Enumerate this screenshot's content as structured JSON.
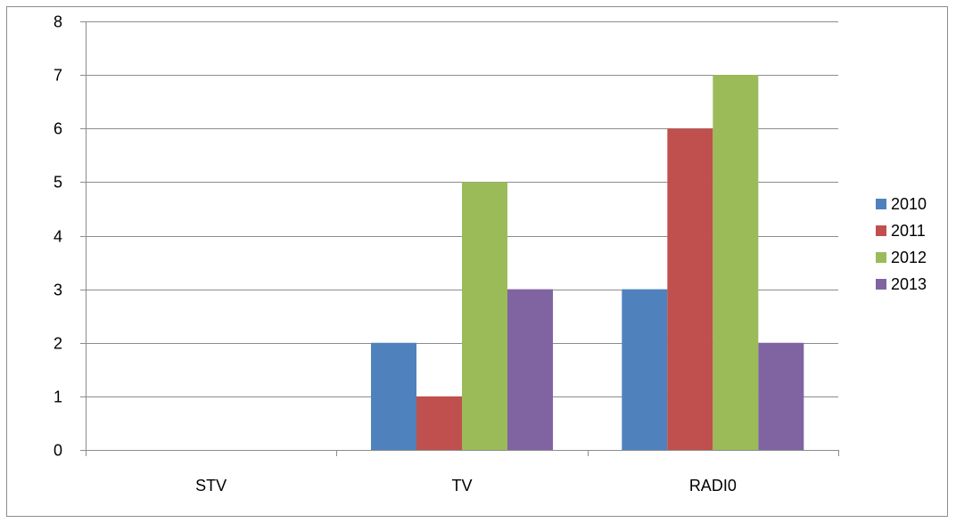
{
  "chart_data": {
    "type": "bar",
    "categories": [
      "STV",
      "TV",
      "RADI0"
    ],
    "series": [
      {
        "name": "2010",
        "values": [
          0,
          2,
          3
        ],
        "color": "#4F81BD"
      },
      {
        "name": "2011",
        "values": [
          0,
          1,
          6
        ],
        "color": "#C0504D"
      },
      {
        "name": "2012",
        "values": [
          0,
          5,
          7
        ],
        "color": "#9BBB59"
      },
      {
        "name": "2013",
        "values": [
          0,
          3,
          2
        ],
        "color": "#8064A2"
      }
    ],
    "title": "",
    "xlabel": "",
    "ylabel": "",
    "ylim": [
      0,
      8
    ],
    "yticks": [
      "0",
      "1",
      "2",
      "3",
      "4",
      "5",
      "6",
      "7",
      "8"
    ],
    "grid": true,
    "legend_position": "right"
  }
}
